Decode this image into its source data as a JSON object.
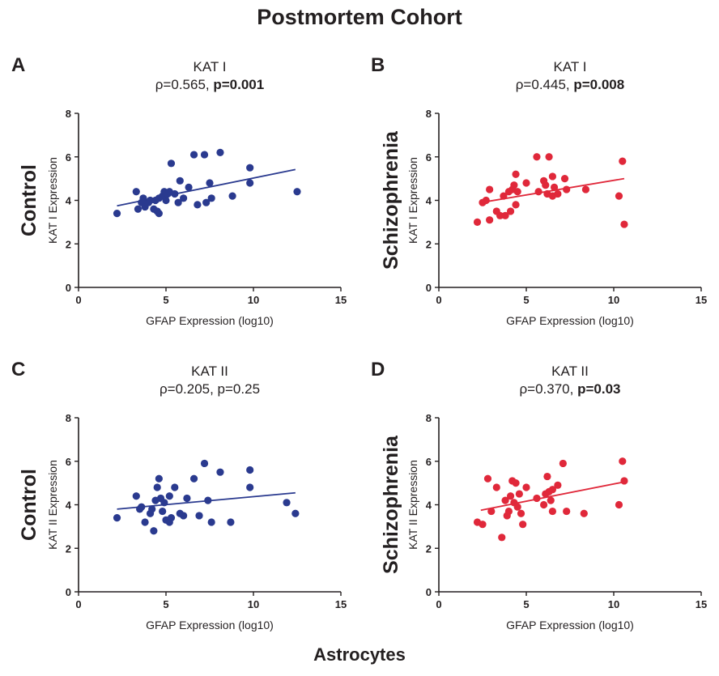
{
  "title": "Postmortem Cohort",
  "bottom_label": "Astrocytes",
  "colors": {
    "control": "#2a3a8f",
    "schizophrenia": "#e0283a",
    "text": "#231f20"
  },
  "chart_data": [
    {
      "type": "scatter",
      "panel": "A",
      "row_label": "Control",
      "title": "KAT I",
      "stat_normal": "ρ=0.565, ",
      "stat_bold": "p=0.001",
      "xlabel": "GFAP Expression (log10)",
      "ylabel": "KAT I Expression",
      "xlim": [
        0,
        15
      ],
      "ylim": [
        0,
        8
      ],
      "xticks": [
        "0",
        "5",
        "10",
        "15"
      ],
      "yticks": [
        "0",
        "2",
        "4",
        "6",
        "8"
      ],
      "color": "#2a3a8f",
      "trendline": [
        [
          2.2,
          3.75
        ],
        [
          12.4,
          5.42
        ]
      ],
      "points": [
        [
          2.2,
          3.4
        ],
        [
          3.3,
          4.4
        ],
        [
          3.4,
          3.6
        ],
        [
          3.6,
          3.9
        ],
        [
          3.7,
          4.1
        ],
        [
          3.8,
          3.7
        ],
        [
          4.0,
          3.9
        ],
        [
          4.1,
          4.0
        ],
        [
          4.3,
          3.6
        ],
        [
          4.4,
          4.0
        ],
        [
          4.5,
          3.5
        ],
        [
          4.6,
          3.4
        ],
        [
          4.6,
          4.1
        ],
        [
          4.8,
          4.2
        ],
        [
          4.9,
          4.4
        ],
        [
          5.0,
          4.0
        ],
        [
          5.1,
          4.3
        ],
        [
          5.2,
          4.4
        ],
        [
          5.3,
          5.7
        ],
        [
          5.5,
          4.3
        ],
        [
          5.7,
          3.9
        ],
        [
          5.8,
          4.9
        ],
        [
          6.0,
          4.1
        ],
        [
          6.3,
          4.6
        ],
        [
          6.6,
          6.1
        ],
        [
          6.8,
          3.8
        ],
        [
          7.2,
          6.1
        ],
        [
          7.3,
          3.9
        ],
        [
          7.5,
          4.8
        ],
        [
          7.6,
          4.1
        ],
        [
          8.1,
          6.2
        ],
        [
          8.8,
          4.2
        ],
        [
          9.8,
          4.8
        ],
        [
          9.8,
          5.5
        ],
        [
          12.5,
          4.4
        ]
      ]
    },
    {
      "type": "scatter",
      "panel": "B",
      "row_label": "Schizophrenia",
      "title": "KAT I",
      "stat_normal": "ρ=0.445, ",
      "stat_bold": "p=0.008",
      "xlabel": "GFAP Expression (log10)",
      "ylabel": "KAT I Expression",
      "xlim": [
        0,
        15
      ],
      "ylim": [
        0,
        8
      ],
      "xticks": [
        "0",
        "5",
        "10",
        "15"
      ],
      "yticks": [
        "0",
        "2",
        "4",
        "6",
        "8"
      ],
      "color": "#e0283a",
      "trendline": [
        [
          2.4,
          3.9
        ],
        [
          10.6,
          5.0
        ]
      ],
      "points": [
        [
          2.2,
          3.0
        ],
        [
          2.5,
          3.9
        ],
        [
          2.7,
          4.0
        ],
        [
          2.9,
          4.5
        ],
        [
          2.9,
          3.1
        ],
        [
          3.3,
          3.5
        ],
        [
          3.5,
          3.3
        ],
        [
          3.7,
          4.2
        ],
        [
          3.8,
          3.3
        ],
        [
          4.0,
          4.4
        ],
        [
          4.1,
          3.5
        ],
        [
          4.2,
          4.5
        ],
        [
          4.3,
          4.7
        ],
        [
          4.4,
          5.2
        ],
        [
          4.4,
          3.8
        ],
        [
          4.5,
          4.4
        ],
        [
          5.0,
          4.8
        ],
        [
          5.6,
          6.0
        ],
        [
          5.7,
          4.4
        ],
        [
          6.0,
          4.9
        ],
        [
          6.1,
          4.7
        ],
        [
          6.2,
          4.3
        ],
        [
          6.3,
          6.0
        ],
        [
          6.5,
          5.1
        ],
        [
          6.5,
          4.2
        ],
        [
          6.6,
          4.6
        ],
        [
          6.8,
          4.3
        ],
        [
          7.2,
          5.0
        ],
        [
          7.3,
          4.5
        ],
        [
          8.4,
          4.5
        ],
        [
          10.3,
          4.2
        ],
        [
          10.5,
          5.8
        ],
        [
          10.6,
          2.9
        ]
      ]
    },
    {
      "type": "scatter",
      "panel": "C",
      "row_label": "Control",
      "title": "KAT II",
      "stat_normal": "ρ=0.205, p=0.25",
      "stat_bold": "",
      "xlabel": "GFAP Expression (log10)",
      "ylabel": "KAT II Expression",
      "xlim": [
        0,
        15
      ],
      "ylim": [
        0,
        8
      ],
      "xticks": [
        "0",
        "5",
        "10",
        "15"
      ],
      "yticks": [
        "0",
        "2",
        "4",
        "6",
        "8"
      ],
      "color": "#2a3a8f",
      "trendline": [
        [
          2.2,
          3.8
        ],
        [
          12.4,
          4.55
        ]
      ],
      "points": [
        [
          2.2,
          3.4
        ],
        [
          3.3,
          4.4
        ],
        [
          3.5,
          3.8
        ],
        [
          3.6,
          3.9
        ],
        [
          3.8,
          3.2
        ],
        [
          4.1,
          3.6
        ],
        [
          4.2,
          3.8
        ],
        [
          4.3,
          2.8
        ],
        [
          4.4,
          4.2
        ],
        [
          4.5,
          4.8
        ],
        [
          4.6,
          5.2
        ],
        [
          4.7,
          4.3
        ],
        [
          4.8,
          3.7
        ],
        [
          4.9,
          4.1
        ],
        [
          5.0,
          3.3
        ],
        [
          5.2,
          3.2
        ],
        [
          5.2,
          4.4
        ],
        [
          5.3,
          3.4
        ],
        [
          5.5,
          4.8
        ],
        [
          5.8,
          3.6
        ],
        [
          6.0,
          3.5
        ],
        [
          6.2,
          4.3
        ],
        [
          6.6,
          5.2
        ],
        [
          7.2,
          5.9
        ],
        [
          7.4,
          4.2
        ],
        [
          7.6,
          3.2
        ],
        [
          8.1,
          5.5
        ],
        [
          8.7,
          3.2
        ],
        [
          9.8,
          5.6
        ],
        [
          9.8,
          4.8
        ],
        [
          11.9,
          4.1
        ],
        [
          12.4,
          3.6
        ],
        [
          6.9,
          3.5
        ]
      ]
    },
    {
      "type": "scatter",
      "panel": "D",
      "row_label": "Schizophrenia",
      "title": "KAT II",
      "stat_normal": "ρ=0.370, ",
      "stat_bold": "p=0.03",
      "xlabel": "GFAP Expression (log10)",
      "ylabel": "KAT II Expression",
      "xlim": [
        0,
        15
      ],
      "ylim": [
        0,
        8
      ],
      "xticks": [
        "0",
        "5",
        "10",
        "15"
      ],
      "yticks": [
        "0",
        "2",
        "4",
        "6",
        "8"
      ],
      "color": "#e0283a",
      "trendline": [
        [
          2.4,
          3.75
        ],
        [
          10.6,
          5.05
        ]
      ],
      "points": [
        [
          2.2,
          3.2
        ],
        [
          2.5,
          3.1
        ],
        [
          2.8,
          5.2
        ],
        [
          3.0,
          3.7
        ],
        [
          3.3,
          4.8
        ],
        [
          3.6,
          2.5
        ],
        [
          3.8,
          4.2
        ],
        [
          3.9,
          3.5
        ],
        [
          4.0,
          3.7
        ],
        [
          4.1,
          4.4
        ],
        [
          4.2,
          5.1
        ],
        [
          4.3,
          4.1
        ],
        [
          4.4,
          5.0
        ],
        [
          4.5,
          3.9
        ],
        [
          4.6,
          4.5
        ],
        [
          4.7,
          3.6
        ],
        [
          4.8,
          3.1
        ],
        [
          5.0,
          4.8
        ],
        [
          5.6,
          4.3
        ],
        [
          6.0,
          4.0
        ],
        [
          6.1,
          4.5
        ],
        [
          6.2,
          5.3
        ],
        [
          6.3,
          4.6
        ],
        [
          6.4,
          4.2
        ],
        [
          6.5,
          4.7
        ],
        [
          6.5,
          3.7
        ],
        [
          6.8,
          4.9
        ],
        [
          7.1,
          5.9
        ],
        [
          7.3,
          3.7
        ],
        [
          8.3,
          3.6
        ],
        [
          10.3,
          4.0
        ],
        [
          10.5,
          6.0
        ],
        [
          10.6,
          5.1
        ]
      ]
    }
  ]
}
